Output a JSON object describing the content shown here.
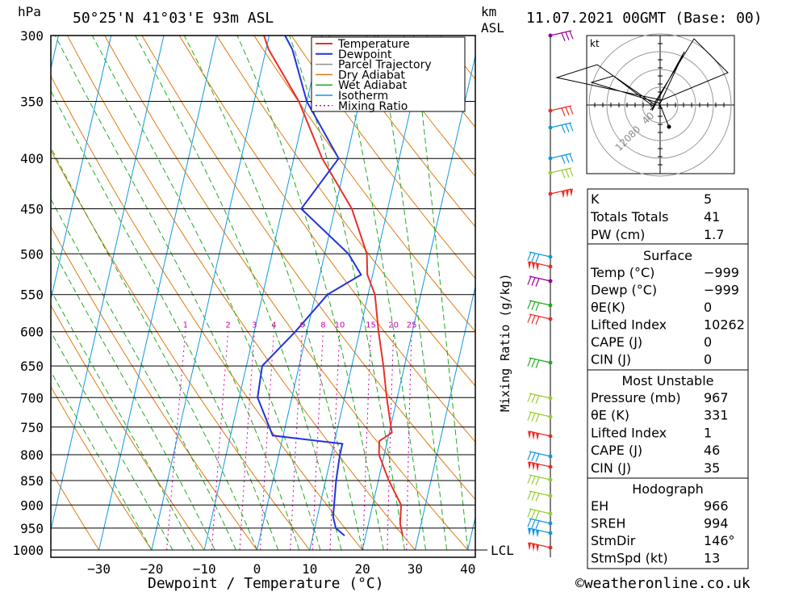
{
  "header": {
    "location": "50°25'N  41°03'E  93m  ASL",
    "datetime": "11.07.2021  00GMT  (Base: 00)",
    "hpa": "hPa",
    "km": "km",
    "asl": "ASL"
  },
  "colors": {
    "temperature": "#e8302a",
    "dewpoint": "#2233dd",
    "parcel": "#909090",
    "dry_adiabat": "#e07a10",
    "wet_adiabat": "#22aa22",
    "isotherm": "#1199dd",
    "mixing_ratio": "#cc00aa"
  },
  "chart_data": {
    "type": "line",
    "title": "50°25'N 41°03'E 93m ASL",
    "xlabel": "Dewpoint / Temperature (°C)",
    "ylabel": "hPa",
    "y_scale": "log",
    "ylim": [
      1000,
      300
    ],
    "xlim": [
      -40,
      40
    ],
    "x_ticks": [
      "−30",
      "−20",
      "−10",
      "0",
      "10",
      "20",
      "30",
      "40"
    ],
    "pressure_levels": [
      300,
      350,
      400,
      450,
      500,
      550,
      600,
      650,
      700,
      750,
      800,
      850,
      900,
      950,
      1000
    ],
    "mixing_ratio_label": "Mixing Ratio (g/kg)",
    "mixing_ratio_values": [
      "1",
      "2",
      "3",
      "4",
      "6",
      "8",
      "10",
      "15",
      "20",
      "25"
    ],
    "lcl_label": "LCL",
    "series": [
      {
        "name": "Temperature",
        "points": [
          [
            967,
            27
          ],
          [
            940,
            26
          ],
          [
            900,
            25.4
          ],
          [
            850,
            22
          ],
          [
            800,
            19
          ],
          [
            775,
            18.5
          ],
          [
            760,
            20.5
          ],
          [
            700,
            18
          ],
          [
            650,
            16
          ],
          [
            600,
            13.6
          ],
          [
            550,
            11.3
          ],
          [
            525,
            9
          ],
          [
            500,
            8
          ],
          [
            450,
            3.2
          ],
          [
            400,
            -4.6
          ],
          [
            350,
            -11.5
          ],
          [
            310,
            -19.5
          ],
          [
            300,
            -21
          ]
        ]
      },
      {
        "name": "Dewpoint",
        "points": [
          [
            967,
            16
          ],
          [
            950,
            14
          ],
          [
            925,
            13
          ],
          [
            850,
            12
          ],
          [
            800,
            11.6
          ],
          [
            780,
            11.6
          ],
          [
            765,
            -2
          ],
          [
            700,
            -6.5
          ],
          [
            650,
            -7
          ],
          [
            600,
            -2.2
          ],
          [
            550,
            2.3
          ],
          [
            525,
            7.8
          ],
          [
            500,
            4.5
          ],
          [
            450,
            -6.4
          ],
          [
            400,
            -1.5
          ],
          [
            350,
            -10
          ],
          [
            310,
            -15
          ],
          [
            300,
            -17
          ]
        ]
      }
    ],
    "legend": [
      "Temperature",
      "Dewpoint",
      "Parcel Trajectory",
      "Dry Adiabat",
      "Wet Adiabat",
      "Isotherm",
      "Mixing Ratio"
    ],
    "legend_position": "top-right",
    "hodograph": {
      "unit": "kt",
      "ring_labels": [
        "40",
        "80",
        "120"
      ]
    }
  },
  "indices": {
    "general": [
      {
        "label": "K",
        "value": "5"
      },
      {
        "label": "Totals Totals",
        "value": "41"
      },
      {
        "label": "PW (cm)",
        "value": "1.7"
      }
    ],
    "surface": {
      "title": "Surface",
      "rows": [
        {
          "label": "Temp (°C)",
          "value": "−999"
        },
        {
          "label": "Dewp (°C)",
          "value": "−999"
        },
        {
          "label": "θE(K)",
          "value": "0"
        },
        {
          "label": "Lifted Index",
          "value": "10262"
        },
        {
          "label": "CAPE (J)",
          "value": "0"
        },
        {
          "label": "CIN (J)",
          "value": "0"
        }
      ]
    },
    "most_unstable": {
      "title": "Most Unstable",
      "rows": [
        {
          "label": "Pressure (mb)",
          "value": "967"
        },
        {
          "label": "θE (K)",
          "value": "331"
        },
        {
          "label": "Lifted Index",
          "value": "1"
        },
        {
          "label": "CAPE (J)",
          "value": "46"
        },
        {
          "label": "CIN (J)",
          "value": "35"
        }
      ]
    },
    "hodograph": {
      "title": "Hodograph",
      "rows": [
        {
          "label": "EH",
          "value": "966"
        },
        {
          "label": "SREH",
          "value": "994"
        },
        {
          "label": "StmDir",
          "value": "146°"
        },
        {
          "label": "StmSpd (kt)",
          "value": "13"
        }
      ]
    }
  },
  "footer": {
    "copyright": "©weatheronline.co.uk"
  }
}
